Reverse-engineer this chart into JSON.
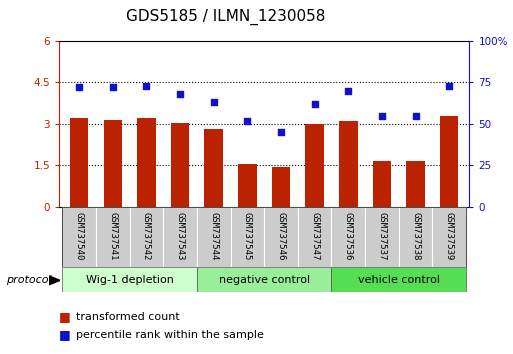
{
  "title": "GDS5185 / ILMN_1230058",
  "samples": [
    "GSM737540",
    "GSM737541",
    "GSM737542",
    "GSM737543",
    "GSM737544",
    "GSM737545",
    "GSM737546",
    "GSM737547",
    "GSM737536",
    "GSM737537",
    "GSM737538",
    "GSM737539"
  ],
  "red_bars": [
    3.2,
    3.15,
    3.22,
    3.02,
    2.82,
    1.55,
    1.45,
    2.98,
    3.1,
    1.65,
    1.65,
    3.3
  ],
  "blue_dots": [
    72,
    72,
    73,
    68,
    63,
    52,
    45,
    62,
    70,
    55,
    55,
    73
  ],
  "left_ylim": [
    0,
    6
  ],
  "right_ylim": [
    0,
    100
  ],
  "left_yticks": [
    0,
    1.5,
    3.0,
    4.5,
    6.0
  ],
  "left_yticklabels": [
    "0",
    "1.5",
    "3",
    "4.5",
    "6"
  ],
  "right_yticks": [
    0,
    25,
    50,
    75,
    100
  ],
  "right_yticklabels": [
    "0",
    "25",
    "50",
    "75",
    "100%"
  ],
  "bar_color": "#bb2200",
  "dot_color": "#1111cc",
  "groups": [
    {
      "label": "Wig-1 depletion",
      "start": 0,
      "end": 4,
      "color": "#ccffcc"
    },
    {
      "label": "negative control",
      "start": 4,
      "end": 8,
      "color": "#99ee99"
    },
    {
      "label": "vehicle control",
      "start": 8,
      "end": 12,
      "color": "#55dd55"
    }
  ],
  "protocol_label": "protocol",
  "legend_items": [
    {
      "label": "transformed count",
      "color": "#bb2200"
    },
    {
      "label": "percentile rank within the sample",
      "color": "#1111cc"
    }
  ],
  "sample_bg": "#cccccc",
  "title_fontsize": 11,
  "tick_fontsize": 7.5,
  "bar_width": 0.55,
  "gridline_color": "#000000",
  "gridline_vals": [
    1.5,
    3.0,
    4.5
  ]
}
